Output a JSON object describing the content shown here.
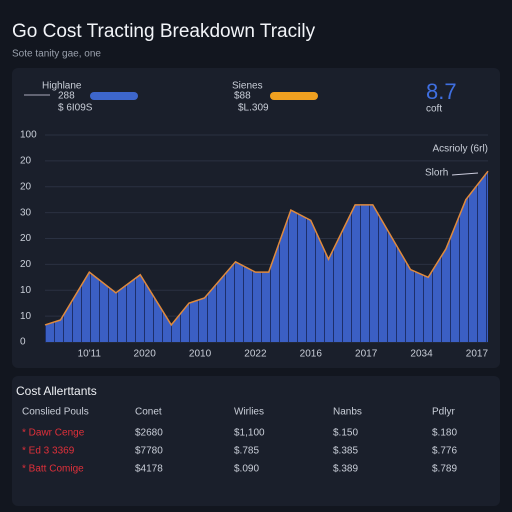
{
  "header": {
    "title": "Go Cost Tracting Breakdown Tracily",
    "subtitle": "Sote tanity gae, one"
  },
  "stats": [
    {
      "label": "Highlane",
      "value": "288",
      "sub": "$ 6I09S"
    },
    {
      "label": "Sienes",
      "value": "$88",
      "sub": "$L.309"
    },
    {
      "value": "8.7",
      "sub": "coft"
    }
  ],
  "chart_data": {
    "type": "area",
    "annotations": [
      "Acsrioly (6rl)",
      "Slorh"
    ],
    "color": "#3b5fc4",
    "edge_color": "#e08a3c",
    "x": [
      0,
      0.7,
      2,
      3.2,
      4.3,
      5.7,
      6.5,
      7.2,
      8.6,
      9.5,
      10.1,
      11.1,
      12,
      12.8,
      14,
      14.8,
      16.5,
      17.3,
      18.1,
      19,
      20
    ],
    "values": [
      6.6,
      8.5,
      27,
      19,
      26,
      6.6,
      15,
      17,
      31,
      27,
      27,
      51,
      47,
      32,
      53,
      53,
      28,
      25,
      36,
      55,
      66
    ],
    "xlim": [
      0,
      20
    ],
    "xticks": [
      {
        "value": 2,
        "label": "10'11"
      },
      {
        "value": 4.5,
        "label": "2020"
      },
      {
        "value": 7,
        "label": "2010"
      },
      {
        "value": 9.5,
        "label": "2022"
      },
      {
        "value": 12,
        "label": "2016"
      },
      {
        "value": 14.5,
        "label": "2017"
      },
      {
        "value": 17,
        "label": "2034"
      },
      {
        "value": 19.5,
        "label": "2017"
      }
    ],
    "ylim": [
      0,
      80
    ],
    "yticks": [
      0,
      10,
      {
        "value": 20,
        "label": "10"
      },
      {
        "value": 30,
        "label": "20"
      },
      {
        "value": 40,
        "label": "20"
      },
      {
        "value": 50,
        "label": "30"
      },
      {
        "value": 60,
        "label": "20"
      },
      {
        "value": 70,
        "label": "20"
      },
      {
        "value": 80,
        "label": "100"
      }
    ],
    "grid": true
  },
  "table": {
    "title": "Cost Allerttants",
    "columns": [
      "Conslied Pouls",
      "Conet",
      "Wirlies",
      "Nanbs",
      "Pdlyr"
    ],
    "rows": [
      [
        "* Dawr Cenge",
        "$2680",
        "$1,100",
        "$.150",
        "$.180"
      ],
      [
        "* Ed 3 3369",
        "$7780",
        "$.785",
        "$.385",
        "$.776"
      ],
      [
        "* Batt Comige",
        "$4178",
        "$.090",
        "$.389",
        "$.789"
      ]
    ]
  }
}
